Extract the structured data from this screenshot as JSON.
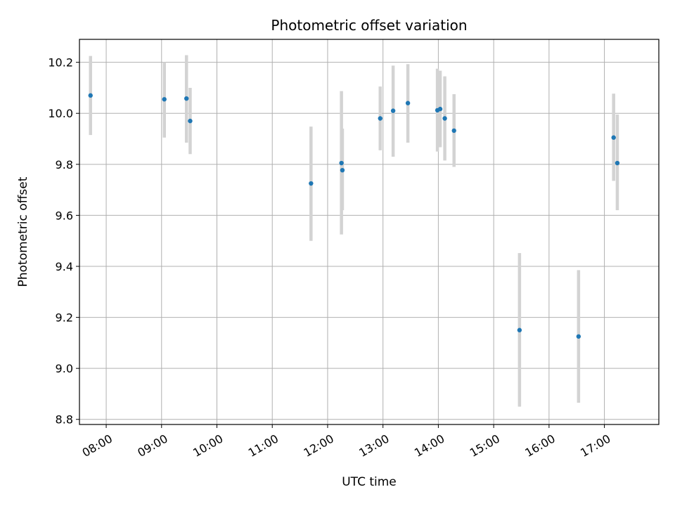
{
  "chart_data": {
    "type": "scatter",
    "title": "Photometric offset variation",
    "xlabel": "UTC time",
    "ylabel": "Photometric offset",
    "x_ticks": [
      "08:00",
      "09:00",
      "10:00",
      "11:00",
      "12:00",
      "13:00",
      "14:00",
      "15:00",
      "16:00",
      "17:00"
    ],
    "y_ticks": [
      "8.8",
      "9.0",
      "9.2",
      "9.4",
      "9.6",
      "9.8",
      "10.0",
      "10.2"
    ],
    "xlim": [
      "07:31",
      "17:59"
    ],
    "ylim": [
      8.78,
      10.29
    ],
    "grid": true,
    "colors": {
      "point": "#1f77b4",
      "errorbar": "#d3d3d3",
      "grid": "#b0b0b0"
    },
    "points": [
      {
        "x": "07:43",
        "y": 10.07,
        "ylow": 9.915,
        "yhigh": 10.225
      },
      {
        "x": "09:03",
        "y": 10.055,
        "ylow": 9.905,
        "yhigh": 10.2
      },
      {
        "x": "09:27",
        "y": 10.058,
        "ylow": 9.885,
        "yhigh": 10.228
      },
      {
        "x": "09:31",
        "y": 9.97,
        "ylow": 9.84,
        "yhigh": 10.1
      },
      {
        "x": "11:42",
        "y": 9.725,
        "ylow": 9.5,
        "yhigh": 9.948
      },
      {
        "x": "12:15",
        "y": 9.805,
        "ylow": 9.525,
        "yhigh": 10.087
      },
      {
        "x": "12:16",
        "y": 9.777,
        "ylow": 9.62,
        "yhigh": 9.94
      },
      {
        "x": "12:57",
        "y": 9.98,
        "ylow": 9.855,
        "yhigh": 10.105
      },
      {
        "x": "13:11",
        "y": 10.01,
        "ylow": 9.83,
        "yhigh": 10.187
      },
      {
        "x": "13:27",
        "y": 10.04,
        "ylow": 9.885,
        "yhigh": 10.193
      },
      {
        "x": "13:59",
        "y": 10.012,
        "ylow": 9.85,
        "yhigh": 10.175
      },
      {
        "x": "14:02",
        "y": 10.017,
        "ylow": 9.867,
        "yhigh": 10.167
      },
      {
        "x": "14:07",
        "y": 9.98,
        "ylow": 9.815,
        "yhigh": 10.145
      },
      {
        "x": "14:17",
        "y": 9.932,
        "ylow": 9.79,
        "yhigh": 10.075
      },
      {
        "x": "15:28",
        "y": 9.15,
        "ylow": 8.85,
        "yhigh": 9.452
      },
      {
        "x": "16:32",
        "y": 9.125,
        "ylow": 8.865,
        "yhigh": 9.385
      },
      {
        "x": "17:10",
        "y": 9.905,
        "ylow": 9.735,
        "yhigh": 10.077
      },
      {
        "x": "17:14",
        "y": 9.805,
        "ylow": 9.62,
        "yhigh": 9.995
      }
    ]
  }
}
